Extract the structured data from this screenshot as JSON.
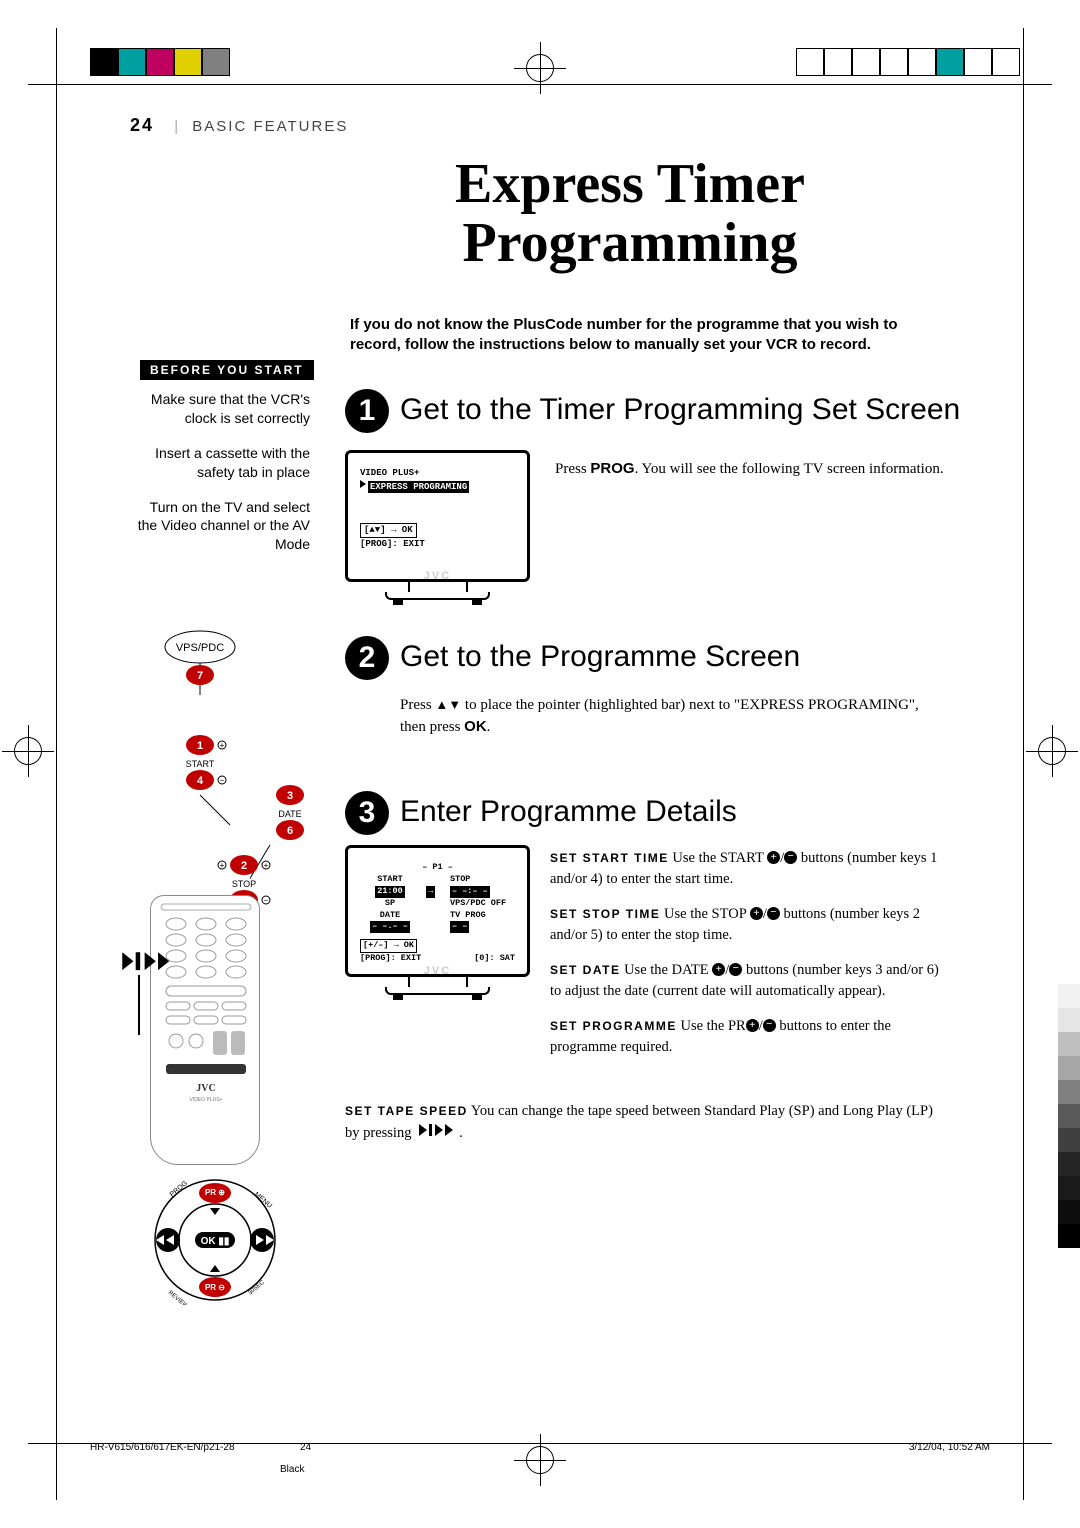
{
  "page_number": "24",
  "section": "BASIC FEATURES",
  "title_line1": "Express Timer",
  "title_line2": "Programming",
  "intro": "If you do not know the PlusCode number for the programme that you wish to record, follow the instructions below to manually set your VCR to record.",
  "before_you_start_label": "BEFORE YOU START",
  "before_items": [
    "Make sure that the VCR's clock is set correctly",
    "Insert a cassette with the safety tab in place",
    "Turn on the TV and select the Video channel or the AV Mode"
  ],
  "steps": {
    "s1": {
      "num": "1",
      "title": "Get to the Timer Programming Set Screen",
      "body_pre": "Press ",
      "body_bold": "PROG",
      "body_post": ". You will see the following TV screen information."
    },
    "s2": {
      "num": "2",
      "title": "Get to the Programme Screen",
      "body": "Press ▲▼ to place the pointer (highlighted bar) next to \"EXPRESS PROGRAMING\", then press OK."
    },
    "s3": {
      "num": "3",
      "title": "Enter Programme Details"
    }
  },
  "tv1_lines": {
    "l1": "VIDEO PLUS+",
    "l2": "EXPRESS PROGRAMING",
    "l3": "[▲▼] → OK",
    "l4": "[PROG]: EXIT"
  },
  "tv2": {
    "hdr": "– P1 –",
    "c1": "START",
    "c2": "STOP",
    "v1": "21:00",
    "v2": "– –:– –",
    "c3": "SP",
    "c4": "VPS/PDC OFF",
    "c5": "DATE",
    "c6": "TV PROG",
    "v5": "– –.– –",
    "v6": "– –",
    "l3": "[+/–] → OK",
    "l4": "[PROG]: EXIT",
    "l5": "[0]: SAT"
  },
  "jvc": "JVC",
  "details": {
    "start": {
      "lbl": "SET START TIME",
      "pre": " Use the START ",
      "post": " buttons (number keys 1 and/or 4) to enter the start time."
    },
    "stop": {
      "lbl": "SET STOP TIME",
      "pre": " Use the STOP ",
      "post": " buttons (number keys 2 and/or 5) to enter the stop time."
    },
    "date": {
      "lbl": "SET DATE",
      "pre": " Use the DATE ",
      "post": " buttons (number keys 3 and/or 6) to adjust the date (current date will automatically appear)."
    },
    "prog": {
      "lbl": "SET PROGRAMME",
      "pre": " Use the PR",
      "post": " buttons to enter the programme required."
    },
    "tape": {
      "lbl": "SET TAPE SPEED",
      "body": " You can change the tape speed between Standard Play (SP) and Long Play (LP) by pressing "
    }
  },
  "callout_labels": {
    "vpspdc": "VPS/PDC",
    "n7": "7",
    "n1": "1",
    "start": "START",
    "n4": "4",
    "n3": "3",
    "date": "DATE",
    "n6": "6",
    "n2": "2",
    "stop": "STOP",
    "n5": "5"
  },
  "footer": {
    "left": "HR-V615/616/617EK-EN/p21-28",
    "mid": "24",
    "right": "3/12/04, 10:52 AM",
    "black": "Black"
  },
  "colors": {
    "left_bar": [
      "#000000",
      "#00a0a0",
      "#c00060",
      "#e0d000",
      "#808080"
    ],
    "right_bar": [
      "#ffffff",
      "#ffffff",
      "#ffffff",
      "#ffffff",
      "#ffffff",
      "#00a0a0",
      "#ffffff",
      "#ffffff"
    ],
    "gray_scale": [
      "#ffffff",
      "#f2f2f2",
      "#e5e5e5",
      "#bfbfbf",
      "#a6a6a6",
      "#808080",
      "#595959",
      "#404040",
      "#262626",
      "#1a1a1a",
      "#0d0d0d",
      "#000000"
    ]
  }
}
